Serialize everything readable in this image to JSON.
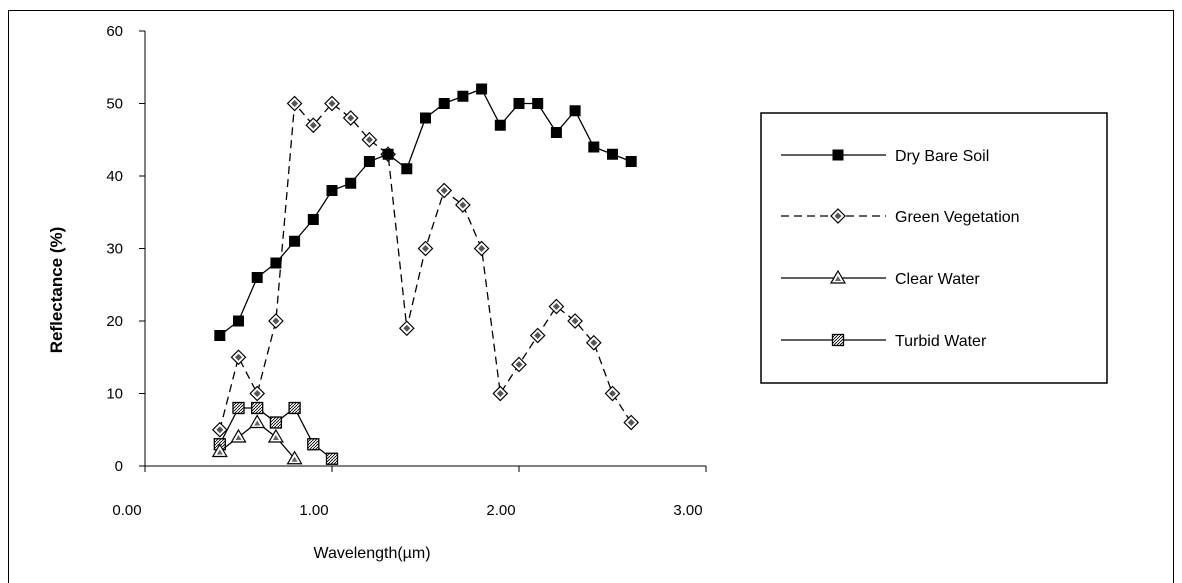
{
  "chart_data": {
    "type": "line",
    "xlabel": "Wavelength(µm)",
    "ylabel": "Reflectance (%)",
    "xlim": [
      0,
      3
    ],
    "ylim": [
      0,
      60
    ],
    "x_ticks": [
      "0.00",
      "1.00",
      "2.00",
      "3.00"
    ],
    "y_ticks": [
      "0",
      "10",
      "20",
      "30",
      "40",
      "50",
      "60"
    ],
    "grid": false,
    "legend_position": "right",
    "series": [
      {
        "name": "Dry Bare Soil",
        "line_style": "solid",
        "marker": "filled-square",
        "x": [
          0.4,
          0.5,
          0.6,
          0.7,
          0.8,
          0.9,
          1.0,
          1.1,
          1.2,
          1.3,
          1.4,
          1.5,
          1.6,
          1.7,
          1.8,
          1.9,
          2.0,
          2.1,
          2.2,
          2.3,
          2.4,
          2.5,
          2.6
        ],
        "y": [
          18,
          20,
          26,
          28,
          31,
          34,
          38,
          39,
          42,
          43,
          41,
          48,
          50,
          51,
          52,
          47,
          50,
          50,
          46,
          49,
          44,
          43,
          42
        ]
      },
      {
        "name": "Green Vegetation",
        "line_style": "dashed",
        "marker": "diamond",
        "x": [
          0.4,
          0.5,
          0.6,
          0.7,
          0.8,
          0.9,
          1.0,
          1.1,
          1.2,
          1.3,
          1.4,
          1.5,
          1.6,
          1.7,
          1.8,
          1.9,
          2.0,
          2.1,
          2.2,
          2.3,
          2.4,
          2.5,
          2.6
        ],
        "y": [
          5,
          15,
          10,
          20,
          50,
          47,
          50,
          48,
          45,
          43,
          19,
          30,
          38,
          36,
          30,
          10,
          14,
          18,
          22,
          20,
          17,
          10,
          6
        ]
      },
      {
        "name": "Clear Water",
        "line_style": "solid",
        "marker": "triangle",
        "x": [
          0.4,
          0.5,
          0.6,
          0.7,
          0.8
        ],
        "y": [
          2,
          4,
          6,
          4,
          1
        ]
      },
      {
        "name": "Turbid Water",
        "line_style": "solid",
        "marker": "hatched-square",
        "x": [
          0.4,
          0.5,
          0.6,
          0.7,
          0.8,
          0.9,
          1.0
        ],
        "y": [
          3,
          8,
          8,
          6,
          8,
          3,
          1
        ]
      }
    ]
  }
}
